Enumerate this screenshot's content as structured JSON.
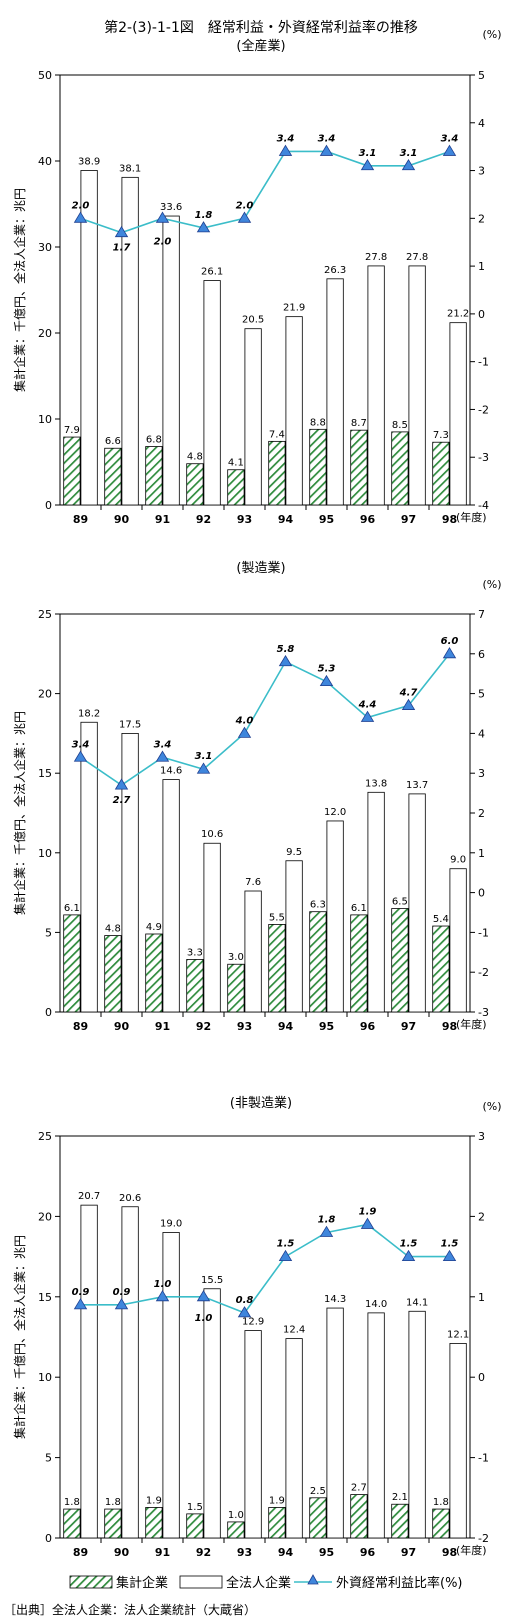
{
  "figure": {
    "title": "第2-(3)-1-1図　経常利益・外資経常利益率の推移",
    "source": "［出典］全法人企業：法人企業統計（大蔵省）"
  },
  "legend": {
    "syukei": "集計企業",
    "zenhojin": "全法人企業",
    "ratio": "外資経常利益比率(%)"
  },
  "colors": {
    "hatch": "#2e8b3c",
    "line": "#3bbdc9",
    "marker_fill": "#3f86dc",
    "marker_stroke": "#1f3f8f",
    "axis": "#000000"
  },
  "chart_data": [
    {
      "type": "bar",
      "subtitle": "(全産業)",
      "categories": [
        "89",
        "90",
        "91",
        "92",
        "93",
        "94",
        "95",
        "96",
        "97",
        "98"
      ],
      "xlabel": "(年度)",
      "ylabel": "集計企業：千億円、全法人企業：兆円",
      "ylim": [
        0,
        50
      ],
      "yticks": [
        0,
        10,
        20,
        30,
        40,
        50
      ],
      "y2label": "(%)",
      "y2lim": [
        -4,
        5
      ],
      "y2ticks": [
        -4,
        -3,
        -2,
        -1,
        0,
        1,
        2,
        3,
        4,
        5
      ],
      "series": [
        {
          "name": "集計企業",
          "type": "bar",
          "values": [
            7.9,
            6.6,
            6.8,
            4.8,
            4.1,
            7.4,
            8.8,
            8.7,
            8.5,
            7.3
          ]
        },
        {
          "name": "全法人企業",
          "type": "bar",
          "values": [
            38.9,
            38.1,
            33.6,
            26.1,
            20.5,
            21.9,
            26.3,
            27.8,
            27.8,
            21.2
          ]
        },
        {
          "name": "外資経常利益比率(%)",
          "type": "line",
          "axis": "right",
          "values": [
            2.0,
            1.7,
            2.0,
            1.8,
            2.0,
            3.4,
            3.4,
            3.1,
            3.1,
            3.4
          ]
        }
      ]
    },
    {
      "type": "bar",
      "subtitle": "(製造業)",
      "categories": [
        "89",
        "90",
        "91",
        "92",
        "93",
        "94",
        "95",
        "96",
        "97",
        "98"
      ],
      "xlabel": "(年度)",
      "ylabel": "集計企業：千億円、全法人企業：兆円",
      "ylim": [
        0,
        25
      ],
      "yticks": [
        0,
        5,
        10,
        15,
        20,
        25
      ],
      "y2label": "(%)",
      "y2lim": [
        -3,
        7
      ],
      "y2ticks": [
        -3,
        -2,
        -1,
        0,
        1,
        2,
        3,
        4,
        5,
        6,
        7
      ],
      "series": [
        {
          "name": "集計企業",
          "type": "bar",
          "values": [
            6.1,
            4.8,
            4.9,
            3.3,
            3.0,
            5.5,
            6.3,
            6.1,
            6.5,
            5.4
          ]
        },
        {
          "name": "全法人企業",
          "type": "bar",
          "values": [
            18.2,
            17.5,
            14.6,
            10.6,
            7.6,
            9.5,
            12.0,
            13.8,
            13.7,
            9.0
          ]
        },
        {
          "name": "外資経常利益比率(%)",
          "type": "line",
          "axis": "right",
          "values": [
            3.4,
            2.7,
            3.4,
            3.1,
            4.0,
            5.8,
            5.3,
            4.4,
            4.7,
            6.0
          ]
        }
      ]
    },
    {
      "type": "bar",
      "subtitle": "(非製造業)",
      "categories": [
        "89",
        "90",
        "91",
        "92",
        "93",
        "94",
        "95",
        "96",
        "97",
        "98"
      ],
      "xlabel": "(年度)",
      "ylabel": "集計企業：千億円、全法人企業：兆円",
      "ylim": [
        0,
        25
      ],
      "yticks": [
        0,
        5,
        10,
        15,
        20,
        25
      ],
      "y2label": "(%)",
      "y2lim": [
        -2,
        3
      ],
      "y2ticks": [
        -2,
        -1,
        0,
        1,
        2,
        3
      ],
      "series": [
        {
          "name": "集計企業",
          "type": "bar",
          "values": [
            1.8,
            1.8,
            1.9,
            1.5,
            1.0,
            1.9,
            2.5,
            2.7,
            2.1,
            1.8
          ]
        },
        {
          "name": "全法人企業",
          "type": "bar",
          "values": [
            20.7,
            20.6,
            19.0,
            15.5,
            12.9,
            12.4,
            14.3,
            14.0,
            14.1,
            12.1
          ]
        },
        {
          "name": "外資経常利益比率(%)",
          "type": "line",
          "axis": "right",
          "values": [
            0.9,
            0.9,
            1.0,
            1.0,
            0.8,
            1.5,
            1.8,
            1.9,
            1.5,
            1.5
          ]
        }
      ]
    }
  ]
}
